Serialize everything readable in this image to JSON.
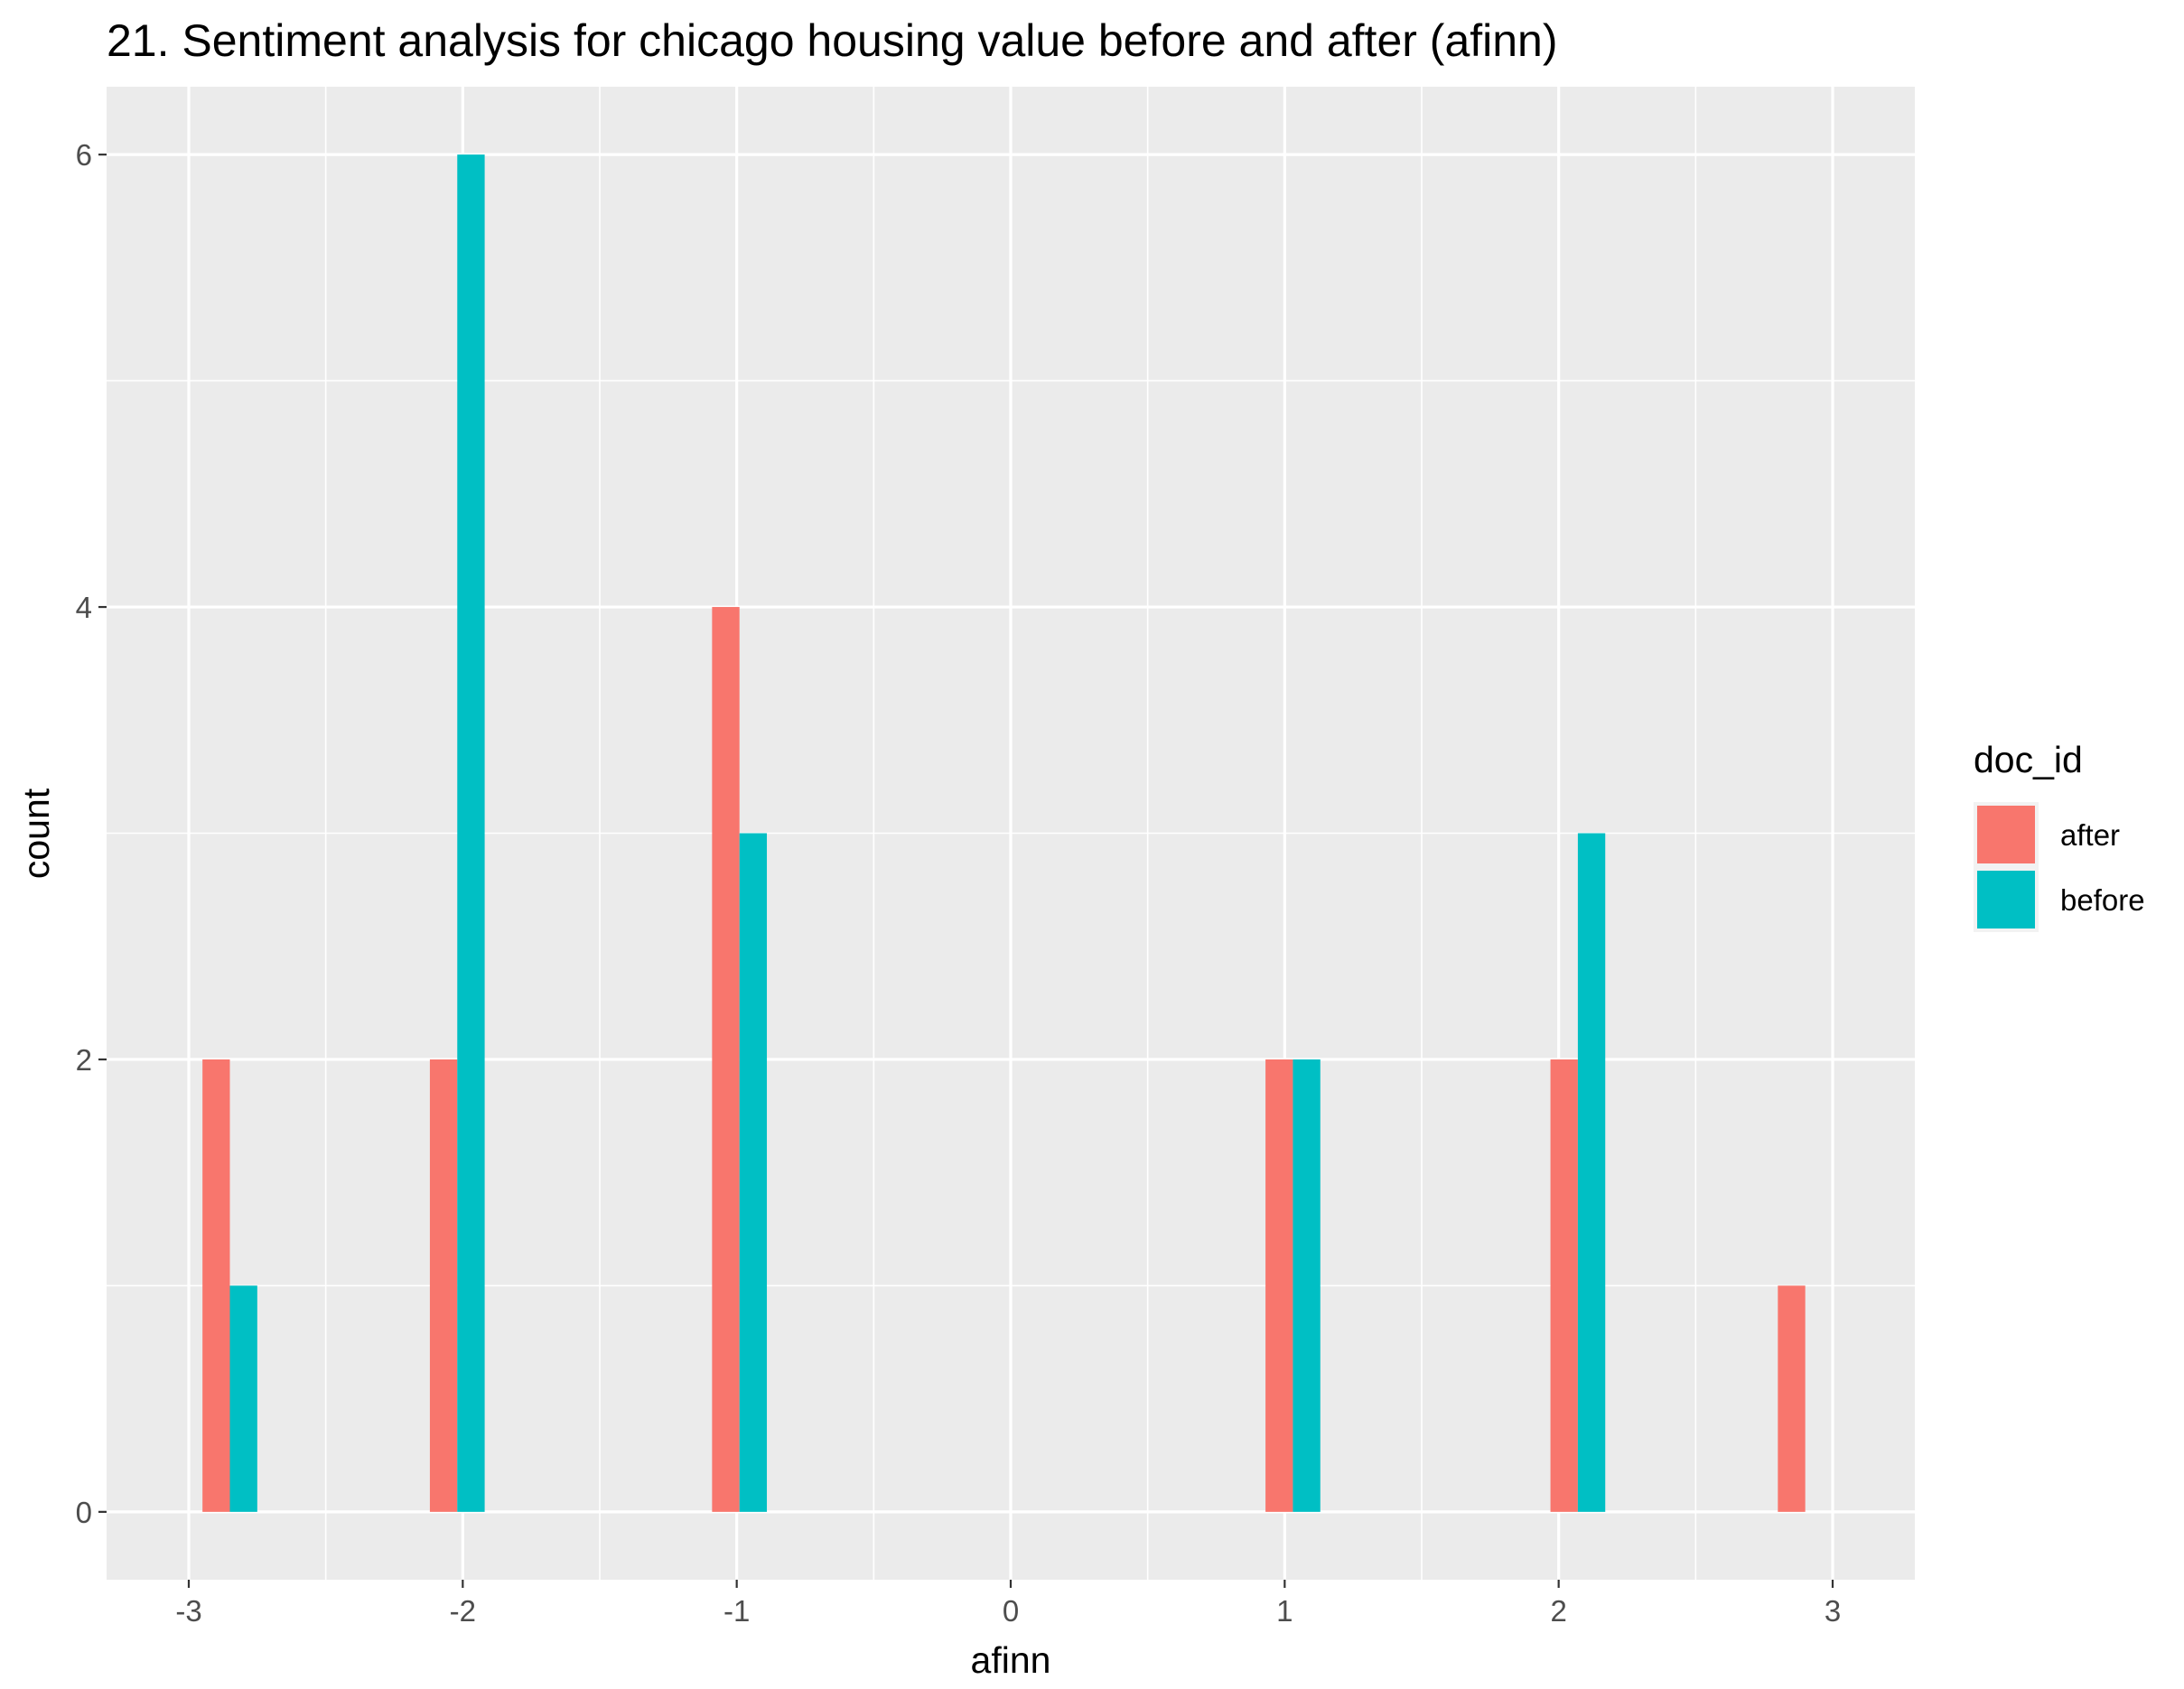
{
  "chart_data": {
    "type": "bar",
    "title": "21. Sentiment analysis for chicago housing value before and after (afinn)",
    "xlabel": "afinn",
    "ylabel": "count",
    "x_ticks": [
      -3,
      -2,
      -1,
      0,
      1,
      2,
      3
    ],
    "y_ticks": [
      0,
      2,
      4,
      6
    ],
    "xlim": [
      -3.3,
      3.3
    ],
    "ylim": [
      -0.3,
      6.3
    ],
    "grid": true,
    "legend": {
      "title": "doc_id",
      "placement": "right"
    },
    "series": [
      {
        "name": "after",
        "color": "#F8766D",
        "bars": [
          {
            "x": -2.9,
            "value": 2
          },
          {
            "x": -2.07,
            "value": 2
          },
          {
            "x": -1.04,
            "value": 4
          },
          {
            "x": 0.98,
            "value": 2
          },
          {
            "x": 2.02,
            "value": 2
          },
          {
            "x": 2.85,
            "value": 1
          }
        ]
      },
      {
        "name": "before",
        "color": "#00BFC4",
        "bars": [
          {
            "x": -2.8,
            "value": 1
          },
          {
            "x": -1.97,
            "value": 6
          },
          {
            "x": -0.94,
            "value": 3
          },
          {
            "x": 1.08,
            "value": 2
          },
          {
            "x": 2.12,
            "value": 3
          }
        ]
      }
    ],
    "bar_width": 0.1
  }
}
